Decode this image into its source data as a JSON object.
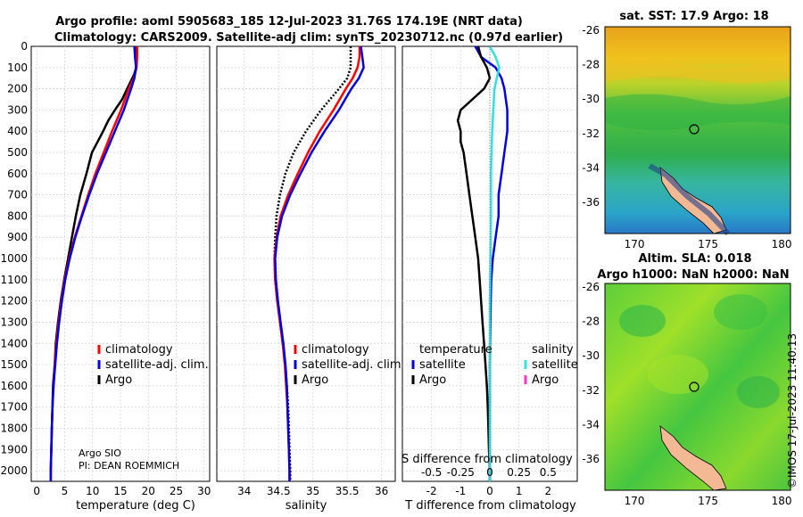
{
  "header": {
    "line1": "Argo profile: aoml 5905683_185 12-Jul-2023 31.76S 174.19E (NRT data)",
    "line2": "Climatology: CARS2009. Satellite-adj clim: synTS_20230712.nc (0.97d earlier)"
  },
  "credit": {
    "line1": "Argo SIO",
    "line2": "PI: DEAN ROEMMICH"
  },
  "colors": {
    "argo": "#000000",
    "climatology": "#ff0000",
    "satellite": "#0000dd",
    "salinity_sat": "#33e0e0",
    "salinity_argo": "#ff33cc"
  },
  "map_top": {
    "title": "sat. SST: 17.9 Argo: 18",
    "lat_ticks": [
      "-26",
      "-28",
      "-30",
      "-32",
      "-34",
      "-36"
    ],
    "lon_ticks": [
      "170",
      "175",
      "180"
    ]
  },
  "map_bottom": {
    "title1": "Altim. SLA: 0.018",
    "title2": "Argo h1000: NaN h2000: NaN",
    "lat_ticks": [
      "-26",
      "-28",
      "-30",
      "-32",
      "-34",
      "-36"
    ],
    "lon_ticks": [
      "170",
      "175",
      "180"
    ]
  },
  "watermark": "©IMOS 17-Jul-2023 11:40:13",
  "chart_data": [
    {
      "type": "line",
      "name": "temperature",
      "xlabel": "temperature (deg C)",
      "xlim": [
        -1,
        31
      ],
      "xticks": [
        0,
        5,
        10,
        15,
        20,
        25,
        30
      ],
      "ylim": [
        0,
        2050
      ],
      "yticks": [
        0,
        100,
        200,
        300,
        400,
        500,
        600,
        700,
        800,
        900,
        1000,
        1100,
        1200,
        1300,
        1400,
        1500,
        1600,
        1700,
        1800,
        1900,
        2000
      ],
      "grid": true,
      "legend": [
        "climatology",
        "satellite-adj. clim.",
        "Argo"
      ],
      "series": [
        {
          "name": "climatology",
          "depth": [
            0,
            50,
            100,
            150,
            200,
            300,
            400,
            500,
            600,
            700,
            800,
            900,
            1000,
            1100,
            1200,
            1300,
            1400,
            1500,
            1600,
            1700,
            1800,
            1900,
            2000,
            2050
          ],
          "values": [
            18.0,
            18.0,
            17.9,
            17.4,
            16.5,
            15.1,
            13.5,
            12.0,
            10.5,
            9.2,
            8.0,
            6.8,
            5.8,
            5.0,
            4.4,
            3.9,
            3.5,
            3.2,
            3.0,
            2.8,
            2.7,
            2.6,
            2.5,
            2.5
          ]
        },
        {
          "name": "satellite-adj. clim.",
          "depth": [
            0,
            50,
            100,
            150,
            200,
            300,
            400,
            500,
            600,
            700,
            800,
            900,
            1000,
            1100,
            1200,
            1300,
            1400,
            1500,
            1600,
            1700,
            1800,
            1900,
            2000,
            2050
          ],
          "values": [
            17.5,
            17.6,
            17.8,
            17.5,
            16.9,
            15.6,
            14.0,
            12.4,
            10.8,
            9.4,
            8.1,
            6.9,
            5.9,
            5.1,
            4.5,
            4.0,
            3.6,
            3.3,
            3.0,
            2.8,
            2.7,
            2.6,
            2.5,
            2.5
          ]
        },
        {
          "name": "Argo",
          "depth": [
            0,
            50,
            100,
            130,
            200,
            250,
            300,
            350,
            400,
            450,
            500,
            600,
            700,
            800,
            900,
            1000,
            1100,
            1200,
            1300,
            1400,
            1500,
            1600,
            1700,
            1800,
            1900,
            2000,
            2050
          ],
          "values": [
            17.9,
            17.9,
            17.8,
            17.5,
            16.2,
            15.3,
            14.0,
            12.8,
            11.9,
            10.9,
            9.9,
            8.9,
            7.8,
            7.0,
            6.3,
            5.6,
            4.9,
            4.3,
            3.8,
            3.4,
            3.2,
            2.9,
            2.8,
            2.7,
            2.6,
            2.5,
            2.5
          ]
        }
      ]
    },
    {
      "type": "line",
      "name": "salinity",
      "xlabel": "salinity",
      "xlim": [
        33.6,
        36.2
      ],
      "xticks": [
        34,
        34.5,
        35,
        35.5,
        36
      ],
      "ylim": [
        0,
        2050
      ],
      "grid": true,
      "legend": [
        "climatology",
        "satellite-adj. clim.",
        "Argo"
      ],
      "series": [
        {
          "name": "climatology",
          "depth": [
            0,
            50,
            100,
            150,
            200,
            300,
            400,
            500,
            600,
            700,
            800,
            900,
            1000,
            1100,
            1200,
            1300,
            1400,
            1500,
            1600,
            1700,
            1800,
            1900,
            2000,
            2050
          ],
          "values": [
            35.68,
            35.68,
            35.65,
            35.58,
            35.48,
            35.3,
            35.1,
            34.93,
            34.78,
            34.64,
            34.53,
            34.47,
            34.44,
            34.45,
            34.48,
            34.52,
            34.56,
            34.59,
            34.61,
            34.63,
            34.64,
            34.65,
            34.66,
            34.66
          ]
        },
        {
          "name": "satellite-adj. clim.",
          "depth": [
            0,
            50,
            100,
            150,
            200,
            300,
            400,
            500,
            600,
            700,
            800,
            900,
            1000,
            1100,
            1200,
            1300,
            1400,
            1500,
            1600,
            1700,
            1800,
            1900,
            2000,
            2050
          ],
          "values": [
            35.7,
            35.72,
            35.74,
            35.67,
            35.56,
            35.38,
            35.17,
            34.98,
            34.82,
            34.67,
            34.55,
            34.48,
            34.45,
            34.46,
            34.49,
            34.53,
            34.57,
            34.6,
            34.62,
            34.63,
            34.64,
            34.65,
            34.66,
            34.66
          ]
        },
        {
          "name": "Argo",
          "depth": [
            0,
            50,
            100,
            150,
            200,
            300,
            400,
            500,
            600,
            700,
            800,
            900,
            1000,
            1100,
            1200,
            1300,
            1400,
            1500,
            1600,
            1700,
            1800,
            1900,
            2000,
            2050
          ],
          "values": [
            35.55,
            35.55,
            35.55,
            35.5,
            35.38,
            35.12,
            34.9,
            34.72,
            34.6,
            34.52,
            34.47,
            34.45,
            34.44,
            34.45,
            34.48,
            34.52,
            34.56,
            34.6,
            34.62,
            34.64,
            34.65,
            34.66,
            34.67,
            34.67
          ]
        }
      ]
    },
    {
      "type": "line",
      "name": "difference",
      "xlabel": "T difference from climatology",
      "xlabel2": "S difference from climatology",
      "xlim": [
        -3,
        3
      ],
      "xticks": [
        -2,
        -1,
        0,
        1,
        2
      ],
      "xticks_s": [
        -0.5,
        -0.25,
        0,
        0.25,
        0.5
      ],
      "ylim": [
        0,
        2050
      ],
      "grid": true,
      "legend_temperature": {
        "header": "temperature",
        "items": [
          "satellite",
          "Argo"
        ]
      },
      "legend_salinity": {
        "header": "salinity",
        "items": [
          "satellite",
          "Argo"
        ]
      },
      "series": [
        {
          "name": "T satellite",
          "depth": [
            0,
            50,
            100,
            150,
            200,
            300,
            400,
            500,
            600,
            700,
            800,
            900,
            1000,
            1100,
            1200,
            1500,
            2000,
            2050
          ],
          "values": [
            -0.5,
            -0.3,
            0.2,
            0.4,
            0.5,
            0.6,
            0.6,
            0.5,
            0.4,
            0.3,
            0.3,
            0.2,
            0.1,
            0.05,
            0.03,
            0.0,
            0.0,
            0.0
          ]
        },
        {
          "name": "T Argo",
          "depth": [
            0,
            50,
            100,
            150,
            200,
            250,
            300,
            350,
            400,
            450,
            500,
            600,
            700,
            800,
            900,
            1000,
            1100,
            1200,
            1300,
            1400,
            1500,
            1600,
            1700,
            1800,
            1900,
            2000,
            2050
          ],
          "values": [
            -0.4,
            -0.3,
            -0.1,
            0.0,
            -0.2,
            -0.6,
            -1.0,
            -1.1,
            -1.0,
            -1.0,
            -0.9,
            -0.8,
            -0.7,
            -0.6,
            -0.5,
            -0.4,
            -0.35,
            -0.3,
            -0.25,
            -0.2,
            -0.15,
            -0.1,
            -0.07,
            -0.05,
            -0.03,
            0.0,
            0.0
          ]
        },
        {
          "name": "S satellite",
          "depth": [
            0,
            50,
            100,
            150,
            200,
            400,
            600,
            800,
            1000,
            1200,
            1500,
            2000,
            2050
          ],
          "values": [
            0.0,
            0.05,
            0.08,
            0.06,
            0.04,
            0.02,
            0.01,
            0.01,
            0.005,
            0.0,
            0.0,
            0.0,
            0.0
          ]
        }
      ]
    }
  ]
}
